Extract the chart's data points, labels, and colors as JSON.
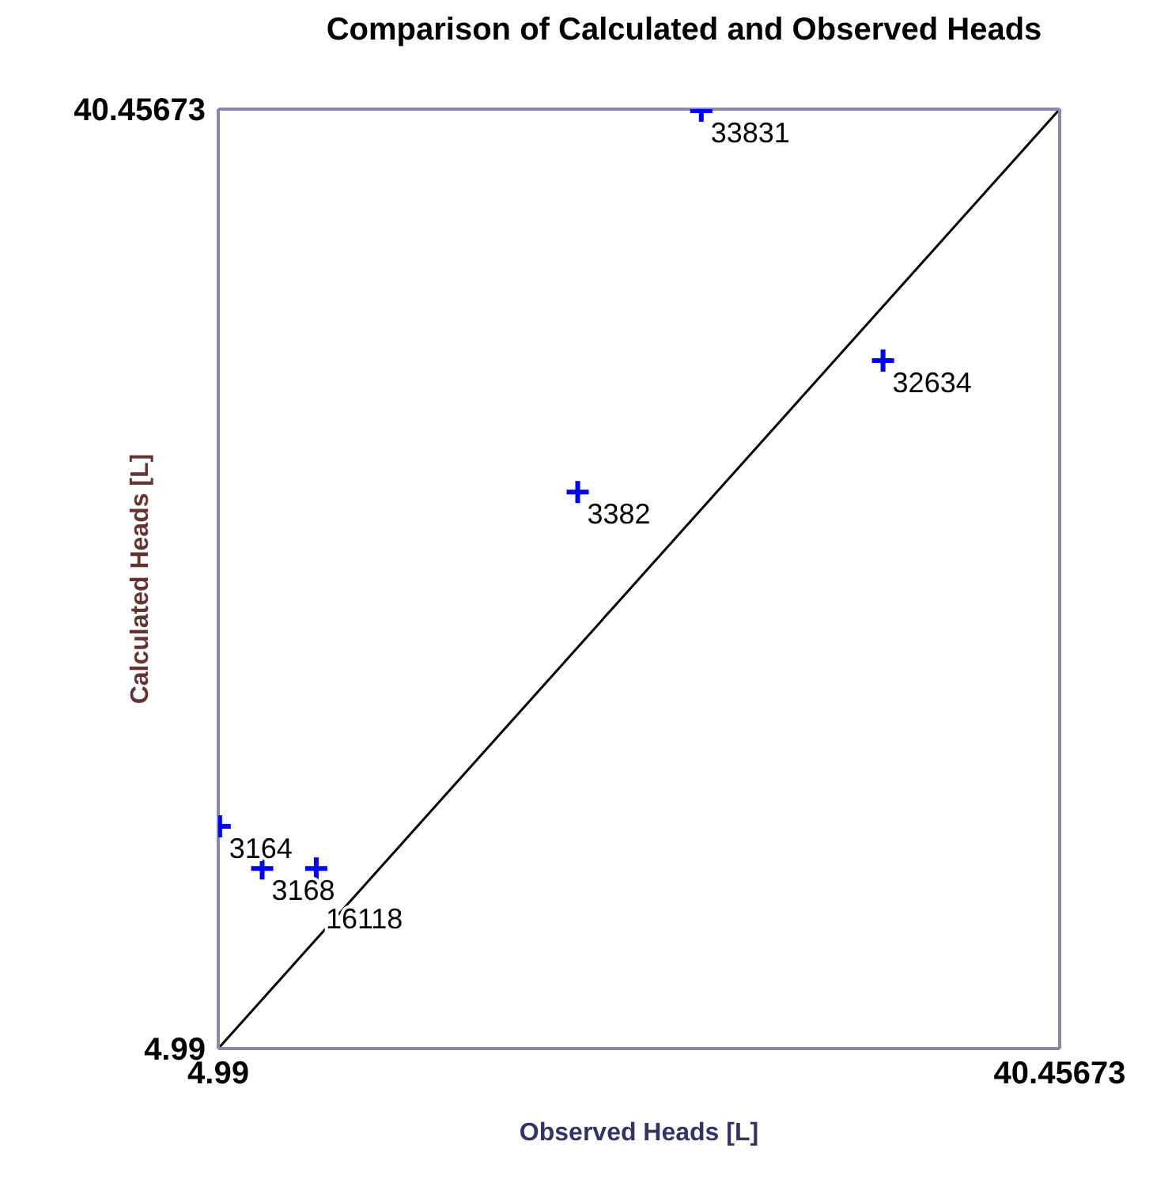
{
  "chart_data": {
    "type": "scatter",
    "title": "Comparison of Calculated and Observed Heads",
    "xlabel": "Observed Heads [L]",
    "ylabel": "Calculated Heads [L]",
    "xlim": [
      4.99,
      40.45673
    ],
    "ylim": [
      4.99,
      40.45673
    ],
    "xticks": [
      4.99,
      40.45673
    ],
    "yticks": [
      4.99,
      40.45673
    ],
    "marker": "cross",
    "series": [
      {
        "color": "#0000ff",
        "x": [
          25.35,
          33.01,
          20.14,
          5.05,
          6.84,
          9.12
        ],
        "values": [
          40.4,
          30.96,
          26.0,
          13.38,
          11.79,
          11.79
        ]
      },
      {
        "type": "line",
        "color": "#000000",
        "marker": "none",
        "x": [
          4.99,
          40.45
        ],
        "values": [
          4.99,
          40.45
        ]
      }
    ],
    "annotations": [
      {
        "text": "33831",
        "x": 25.35,
        "y": 40.4
      },
      {
        "text": "32634",
        "x": 33.01,
        "y": 30.96
      },
      {
        "text": "3382",
        "x": 20.14,
        "y": 26.0
      },
      {
        "text": "3164",
        "x": 5.05,
        "y": 13.38
      },
      {
        "text": "3168",
        "x": 6.84,
        "y": 11.79
      },
      {
        "text": "16118",
        "x": 9.12,
        "y": 11.79
      }
    ]
  }
}
